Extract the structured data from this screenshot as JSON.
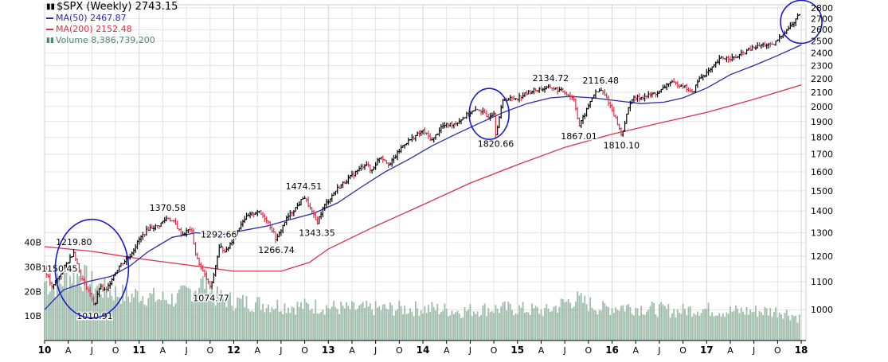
{
  "chart_data": {
    "type": "bar",
    "title": "$SPX (Weekly) 2743.15",
    "xlabel": "",
    "ylabel": "",
    "y_price_range": [
      900,
      2830
    ],
    "y_price_ticks": [
      1000,
      1100,
      1200,
      1300,
      1400,
      1500,
      1600,
      1700,
      1800,
      1900,
      2000,
      2100,
      2200,
      2300,
      2400,
      2500,
      2600,
      2700,
      2800
    ],
    "y_volume_ticks": [
      "10B",
      "20B",
      "30B",
      "40B"
    ],
    "y_volume_values": [
      10,
      20,
      30,
      40
    ],
    "x_range": [
      2010.0,
      2018.05
    ],
    "x_tick_labels": [
      {
        "t": 2010.0,
        "label": "10",
        "year": true
      },
      {
        "t": 2010.25,
        "label": "A"
      },
      {
        "t": 2010.5,
        "label": "J"
      },
      {
        "t": 2010.75,
        "label": "O"
      },
      {
        "t": 2011.0,
        "label": "11",
        "year": true
      },
      {
        "t": 2011.25,
        "label": "A"
      },
      {
        "t": 2011.5,
        "label": "J"
      },
      {
        "t": 2011.75,
        "label": "O"
      },
      {
        "t": 2012.0,
        "label": "12",
        "year": true
      },
      {
        "t": 2012.25,
        "label": "A"
      },
      {
        "t": 2012.5,
        "label": "J"
      },
      {
        "t": 2012.75,
        "label": "O"
      },
      {
        "t": 2013.0,
        "label": "13",
        "year": true
      },
      {
        "t": 2013.25,
        "label": "A"
      },
      {
        "t": 2013.5,
        "label": "J"
      },
      {
        "t": 2013.75,
        "label": "O"
      },
      {
        "t": 2014.0,
        "label": "14",
        "year": true
      },
      {
        "t": 2014.25,
        "label": "A"
      },
      {
        "t": 2014.5,
        "label": "J"
      },
      {
        "t": 2014.75,
        "label": "O"
      },
      {
        "t": 2015.0,
        "label": "15",
        "year": true
      },
      {
        "t": 2015.25,
        "label": "A"
      },
      {
        "t": 2015.5,
        "label": "J"
      },
      {
        "t": 2015.75,
        "label": "O"
      },
      {
        "t": 2016.0,
        "label": "16",
        "year": true
      },
      {
        "t": 2016.25,
        "label": "A"
      },
      {
        "t": 2016.5,
        "label": "J"
      },
      {
        "t": 2016.75,
        "label": "O"
      },
      {
        "t": 2017.0,
        "label": "17",
        "year": true
      },
      {
        "t": 2017.25,
        "label": "A"
      },
      {
        "t": 2017.5,
        "label": "J"
      },
      {
        "t": 2017.75,
        "label": "O"
      },
      {
        "t": 2018.0,
        "label": "18",
        "year": true
      }
    ],
    "legend": [
      {
        "label": "MA(50) 2467.87",
        "color": "#2b2ba8"
      },
      {
        "label": "MA(200) 2152.48",
        "color": "#d9334a"
      },
      {
        "label": "Volume 8,386,739,200",
        "color": "#4f8a6a"
      }
    ],
    "price_series": [
      [
        2010.0,
        1150
      ],
      [
        2010.08,
        1075
      ],
      [
        2010.15,
        1120
      ],
      [
        2010.25,
        1180
      ],
      [
        2010.31,
        1219.8
      ],
      [
        2010.38,
        1120
      ],
      [
        2010.45,
        1075
      ],
      [
        2010.5,
        1040
      ],
      [
        2010.53,
        1010.91
      ],
      [
        2010.58,
        1080
      ],
      [
        2010.65,
        1065
      ],
      [
        2010.72,
        1120
      ],
      [
        2010.8,
        1165
      ],
      [
        2010.9,
        1200
      ],
      [
        2011.0,
        1270
      ],
      [
        2011.1,
        1320
      ],
      [
        2011.2,
        1330
      ],
      [
        2011.3,
        1370.58
      ],
      [
        2011.38,
        1340
      ],
      [
        2011.45,
        1290
      ],
      [
        2011.55,
        1320
      ],
      [
        2011.6,
        1200
      ],
      [
        2011.67,
        1140
      ],
      [
        2011.76,
        1074.77
      ],
      [
        2011.85,
        1240
      ],
      [
        2011.92,
        1220
      ],
      [
        2012.0,
        1280
      ],
      [
        2012.1,
        1360
      ],
      [
        2012.25,
        1400
      ],
      [
        2012.35,
        1360
      ],
      [
        2012.42,
        1300
      ],
      [
        2012.45,
        1266.74
      ],
      [
        2012.55,
        1360
      ],
      [
        2012.7,
        1440
      ],
      [
        2012.74,
        1474.51
      ],
      [
        2012.82,
        1400
      ],
      [
        2012.88,
        1343.35
      ],
      [
        2012.95,
        1420
      ],
      [
        2013.1,
        1515
      ],
      [
        2013.25,
        1580
      ],
      [
        2013.4,
        1650
      ],
      [
        2013.45,
        1600
      ],
      [
        2013.55,
        1690
      ],
      [
        2013.65,
        1640
      ],
      [
        2013.8,
        1760
      ],
      [
        2014.0,
        1840
      ],
      [
        2014.1,
        1780
      ],
      [
        2014.2,
        1870
      ],
      [
        2014.35,
        1890
      ],
      [
        2014.5,
        1960
      ],
      [
        2014.6,
        1980
      ],
      [
        2014.68,
        1930
      ],
      [
        2014.75,
        1960
      ],
      [
        2014.77,
        1820.66
      ],
      [
        2014.85,
        2050
      ],
      [
        2015.0,
        2060
      ],
      [
        2015.15,
        2110
      ],
      [
        2015.35,
        2134.72
      ],
      [
        2015.5,
        2100
      ],
      [
        2015.6,
        2050
      ],
      [
        2015.65,
        1867.01
      ],
      [
        2015.72,
        1960
      ],
      [
        2015.8,
        2080
      ],
      [
        2015.88,
        2116.48
      ],
      [
        2015.95,
        2050
      ],
      [
        2016.05,
        1900
      ],
      [
        2016.1,
        1810.1
      ],
      [
        2016.2,
        2050
      ],
      [
        2016.35,
        2070
      ],
      [
        2016.5,
        2100
      ],
      [
        2016.6,
        2170
      ],
      [
        2016.75,
        2150
      ],
      [
        2016.85,
        2090
      ],
      [
        2016.92,
        2200
      ],
      [
        2017.05,
        2270
      ],
      [
        2017.15,
        2360
      ],
      [
        2017.3,
        2360
      ],
      [
        2017.45,
        2430
      ],
      [
        2017.6,
        2470
      ],
      [
        2017.7,
        2460
      ],
      [
        2017.8,
        2560
      ],
      [
        2017.92,
        2660
      ],
      [
        2017.98,
        2743.15
      ]
    ],
    "ma50_series": [
      [
        2010.0,
        1000
      ],
      [
        2010.2,
        1070
      ],
      [
        2010.45,
        1100
      ],
      [
        2010.7,
        1120
      ],
      [
        2010.9,
        1160
      ],
      [
        2011.1,
        1220
      ],
      [
        2011.35,
        1280
      ],
      [
        2011.6,
        1300
      ],
      [
        2011.85,
        1290
      ],
      [
        2012.1,
        1310
      ],
      [
        2012.35,
        1330
      ],
      [
        2012.6,
        1360
      ],
      [
        2012.85,
        1390
      ],
      [
        2013.1,
        1440
      ],
      [
        2013.35,
        1520
      ],
      [
        2013.6,
        1600
      ],
      [
        2013.85,
        1670
      ],
      [
        2014.1,
        1750
      ],
      [
        2014.35,
        1820
      ],
      [
        2014.6,
        1890
      ],
      [
        2014.85,
        1960
      ],
      [
        2015.1,
        2020
      ],
      [
        2015.35,
        2060
      ],
      [
        2015.55,
        2070
      ],
      [
        2015.8,
        2060
      ],
      [
        2016.05,
        2040
      ],
      [
        2016.3,
        2020
      ],
      [
        2016.55,
        2030
      ],
      [
        2016.75,
        2060
      ],
      [
        2017.0,
        2130
      ],
      [
        2017.25,
        2230
      ],
      [
        2017.5,
        2300
      ],
      [
        2017.75,
        2380
      ],
      [
        2018.0,
        2467.87
      ]
    ],
    "ma200_series": [
      [
        2010.0,
        1240
      ],
      [
        2010.5,
        1220
      ],
      [
        2011.0,
        1190
      ],
      [
        2011.5,
        1165
      ],
      [
        2012.0,
        1140
      ],
      [
        2012.5,
        1140
      ],
      [
        2012.8,
        1175
      ],
      [
        2013.0,
        1230
      ],
      [
        2013.5,
        1330
      ],
      [
        2014.0,
        1430
      ],
      [
        2014.5,
        1540
      ],
      [
        2015.0,
        1640
      ],
      [
        2015.5,
        1740
      ],
      [
        2016.0,
        1820
      ],
      [
        2016.5,
        1890
      ],
      [
        2017.0,
        1960
      ],
      [
        2017.5,
        2050
      ],
      [
        2018.0,
        2152.48
      ]
    ],
    "volume_series_billions": [
      [
        2010.0,
        24
      ],
      [
        2010.1,
        22
      ],
      [
        2010.2,
        25
      ],
      [
        2010.3,
        27
      ],
      [
        2010.4,
        26
      ],
      [
        2010.5,
        23
      ],
      [
        2010.6,
        21
      ],
      [
        2010.7,
        20
      ],
      [
        2010.8,
        19
      ],
      [
        2010.9,
        18
      ],
      [
        2011.0,
        19
      ],
      [
        2011.2,
        17
      ],
      [
        2011.4,
        17
      ],
      [
        2011.6,
        22
      ],
      [
        2011.7,
        24
      ],
      [
        2011.8,
        18
      ],
      [
        2012.0,
        16
      ],
      [
        2012.3,
        15
      ],
      [
        2012.6,
        14
      ],
      [
        2012.9,
        14
      ],
      [
        2013.2,
        13
      ],
      [
        2013.5,
        13
      ],
      [
        2013.8,
        13
      ],
      [
        2014.1,
        13
      ],
      [
        2014.4,
        12
      ],
      [
        2014.7,
        13
      ],
      [
        2015.0,
        13
      ],
      [
        2015.3,
        12
      ],
      [
        2015.6,
        17
      ],
      [
        2015.9,
        13
      ],
      [
        2016.1,
        14
      ],
      [
        2016.4,
        13
      ],
      [
        2016.7,
        12
      ],
      [
        2016.9,
        13
      ],
      [
        2017.2,
        12
      ],
      [
        2017.5,
        12
      ],
      [
        2017.8,
        12
      ],
      [
        2018.0,
        9
      ]
    ],
    "annotations": [
      {
        "t": 2010.0,
        "price": 1150,
        "label": "1150.45",
        "anchor": "left"
      },
      {
        "t": 2010.31,
        "price": 1219.8,
        "label": "1219.80",
        "anchor": "above"
      },
      {
        "t": 2010.53,
        "price": 1010.91,
        "label": "1010.91",
        "anchor": "below"
      },
      {
        "t": 2011.3,
        "price": 1370.58,
        "label": "1370.58",
        "anchor": "above"
      },
      {
        "t": 2011.6,
        "price": 1292.66,
        "label": "1292.66",
        "anchor": "right"
      },
      {
        "t": 2011.76,
        "price": 1074.77,
        "label": "1074.77",
        "anchor": "below"
      },
      {
        "t": 2012.45,
        "price": 1266.74,
        "label": "1266.74",
        "anchor": "below"
      },
      {
        "t": 2012.74,
        "price": 1474.51,
        "label": "1474.51",
        "anchor": "above"
      },
      {
        "t": 2012.88,
        "price": 1343.35,
        "label": "1343.35",
        "anchor": "below"
      },
      {
        "t": 2014.77,
        "price": 1820.66,
        "label": "1820.66",
        "anchor": "below"
      },
      {
        "t": 2015.35,
        "price": 2134.72,
        "label": "2134.72",
        "anchor": "above"
      },
      {
        "t": 2015.65,
        "price": 1867.01,
        "label": "1867.01",
        "anchor": "below"
      },
      {
        "t": 2015.88,
        "price": 2116.48,
        "label": "2116.48",
        "anchor": "above"
      },
      {
        "t": 2016.1,
        "price": 1810.1,
        "label": "1810.10",
        "anchor": "below"
      }
    ],
    "highlight_circles": [
      {
        "t": 2010.5,
        "price": 1150
      },
      {
        "t": 2014.7,
        "price": 1950
      },
      {
        "t": 2018.0,
        "price": 2670
      }
    ],
    "grid": true,
    "legend_position": "top-left",
    "colors": {
      "price_up": "#000000",
      "price_down": "#d9334a",
      "ma50": "#2b2ba8",
      "ma200": "#d9334a",
      "volume": "#8fb29f",
      "circle": "#1a1acc",
      "grid": "#e3e3e3"
    }
  }
}
